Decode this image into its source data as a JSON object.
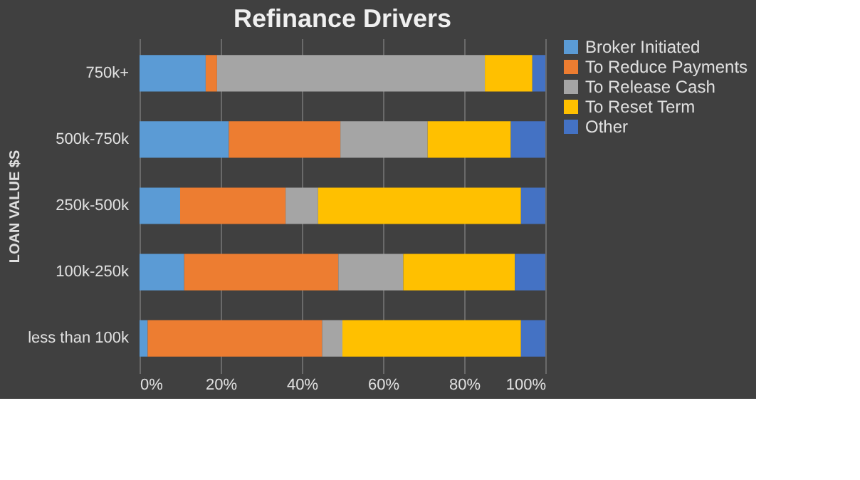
{
  "chart_data": {
    "type": "bar",
    "orientation": "horizontal",
    "stacked": true,
    "title": "Refinance Drivers",
    "ylabel": "LOAN VALUE $S",
    "categories": [
      "750k+",
      "500k-750k",
      "250k-500k",
      "100k-250k",
      "less than 100k"
    ],
    "series": [
      {
        "name": "Broker Initiated",
        "color": "#5b9bd5",
        "values": [
          16.3,
          22,
          10,
          11,
          2
        ]
      },
      {
        "name": "To Reduce Payments",
        "color": "#ed7d31",
        "values": [
          2.8,
          27.5,
          26,
          38,
          43
        ]
      },
      {
        "name": "To Release Cash",
        "color": "#a5a5a5",
        "values": [
          66,
          21.5,
          8,
          16,
          5
        ]
      },
      {
        "name": "To Reset Term",
        "color": "#ffc000",
        "values": [
          11.7,
          20.5,
          50,
          27.5,
          44
        ]
      },
      {
        "name": "Other",
        "color": "#4472c4",
        "values": [
          3.2,
          8.5,
          6,
          7.5,
          6
        ]
      }
    ],
    "xlim": [
      0,
      100
    ],
    "xticks": [
      {
        "value": 0,
        "label": "0%"
      },
      {
        "value": 20,
        "label": "20%"
      },
      {
        "value": 40,
        "label": "40%"
      },
      {
        "value": 60,
        "label": "60%"
      },
      {
        "value": 80,
        "label": "80%"
      },
      {
        "value": 100,
        "label": "100%"
      }
    ],
    "grid": "x",
    "legend": "right"
  }
}
